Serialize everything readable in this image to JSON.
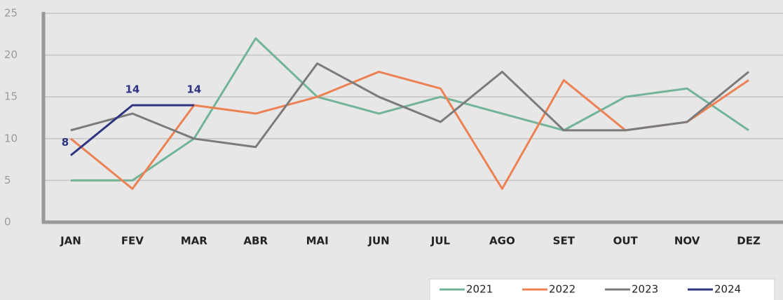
{
  "chart_data": {
    "type": "line",
    "categories": [
      "JAN",
      "FEV",
      "MAR",
      "ABR",
      "MAI",
      "JUN",
      "JUL",
      "AGO",
      "SET",
      "OUT",
      "NOV",
      "DEZ"
    ],
    "series": [
      {
        "name": "2021",
        "color": "#72b497",
        "values": [
          5,
          5,
          10,
          22,
          15,
          13,
          15,
          13,
          11,
          15,
          16,
          11
        ]
      },
      {
        "name": "2022",
        "color": "#ec8253",
        "values": [
          10,
          4,
          14,
          13,
          15,
          18,
          16,
          4,
          17,
          11,
          12,
          17
        ]
      },
      {
        "name": "2023",
        "color": "#7b7b7b",
        "values": [
          11,
          13,
          10,
          9,
          19,
          15,
          12,
          18,
          11,
          11,
          12,
          18
        ]
      },
      {
        "name": "2024",
        "color": "#2e3382",
        "values": [
          8,
          14,
          14,
          null,
          null,
          null,
          null,
          null,
          null,
          null,
          null,
          null
        ],
        "data_labels": true
      }
    ],
    "ylim": [
      0,
      25
    ],
    "yticks": [
      0,
      5,
      10,
      15,
      20,
      25
    ],
    "grid": true,
    "legend": "bottom-right"
  }
}
